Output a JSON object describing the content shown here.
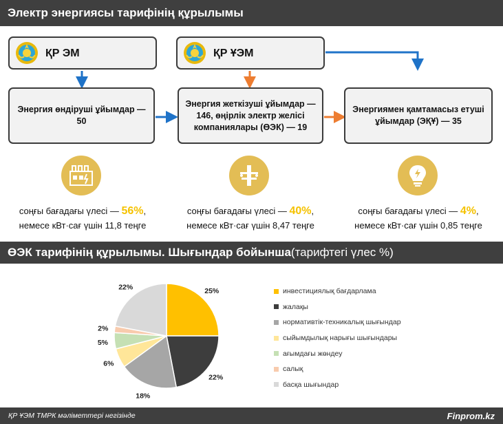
{
  "header": {
    "title": "Электр энергиясы тарифінің құрылымы"
  },
  "orgs": {
    "left": "ҚР ЭМ",
    "right": "ҚР ҰЭМ"
  },
  "boxes": {
    "generation": "Энергия өндіруші ұйымдар — 50",
    "transmission": "Энергия жеткізуші ұйымдар — 146, өңірлік электр желісі компаниялары (ӨЭК) — 19",
    "supply": "Энергиямен қамтамасыз етуші ұйымдар (ЭҚҰ) — 35"
  },
  "shares": [
    {
      "prefix": "соңғы бағадағы үлесі — ",
      "pct": "56%",
      "suffix": ",",
      "line2": "немесе кВт·сағ үшін 11,8 теңге"
    },
    {
      "prefix": "соңғы бағадағы үлесі — ",
      "pct": "40%",
      "suffix": ",",
      "line2": "немесе кВт·сағ үшін 8,47 теңге"
    },
    {
      "prefix": "соңғы бағадағы үлесі — ",
      "pct": "4%",
      "suffix": ",",
      "line2": "немесе кВт·сағ үшін 0,85 теңге"
    }
  ],
  "section2": {
    "title_bold": "ӨЭК тарифінің құрылымы. Шығындар бойынша",
    "title_light": " (тарифтегі үлес %)"
  },
  "colors": {
    "header_bg": "#3f3f3f",
    "arrow_blue": "#1f73c8",
    "arrow_orange": "#ed7d31",
    "icon_gold": "#e3bd55",
    "pct_yellow": "#f5c200"
  },
  "icons": [
    "kz-emblem-icon",
    "factory-icon",
    "power-pylon-icon",
    "lightbulb-icon"
  ],
  "chart_data": {
    "type": "pie",
    "title": "ӨЭК тарифінің құрылымы. Шығындар бойынша (тарифтегі үлес %)",
    "slices": [
      {
        "label": "инвестициялық бағдарлама",
        "value": 25,
        "value_label": "25%",
        "color": "#ffc000"
      },
      {
        "label": "жалақы",
        "value": 22,
        "value_label": "22%",
        "color": "#3d3d3d"
      },
      {
        "label": "нормативтік-техникалық шығындар",
        "value": 18,
        "value_label": "18%",
        "color": "#a6a6a6"
      },
      {
        "label": "сыйымдылық нарығы шығындары",
        "value": 6,
        "value_label": "6%",
        "color": "#ffe699"
      },
      {
        "label": "ағымдағы жөндеу",
        "value": 5,
        "value_label": "5%",
        "color": "#c5e0b4"
      },
      {
        "label": "салық",
        "value": 2,
        "value_label": "2%",
        "color": "#f8cbad"
      },
      {
        "label": "басқа шығындар",
        "value": 22,
        "value_label": "22%",
        "color": "#d9d9d9"
      }
    ],
    "legend_position": "right"
  },
  "footer": {
    "source": "ҚР ҰЭМ ТМРК мәліметтері негізінде",
    "brand": "Finprom.kz"
  }
}
